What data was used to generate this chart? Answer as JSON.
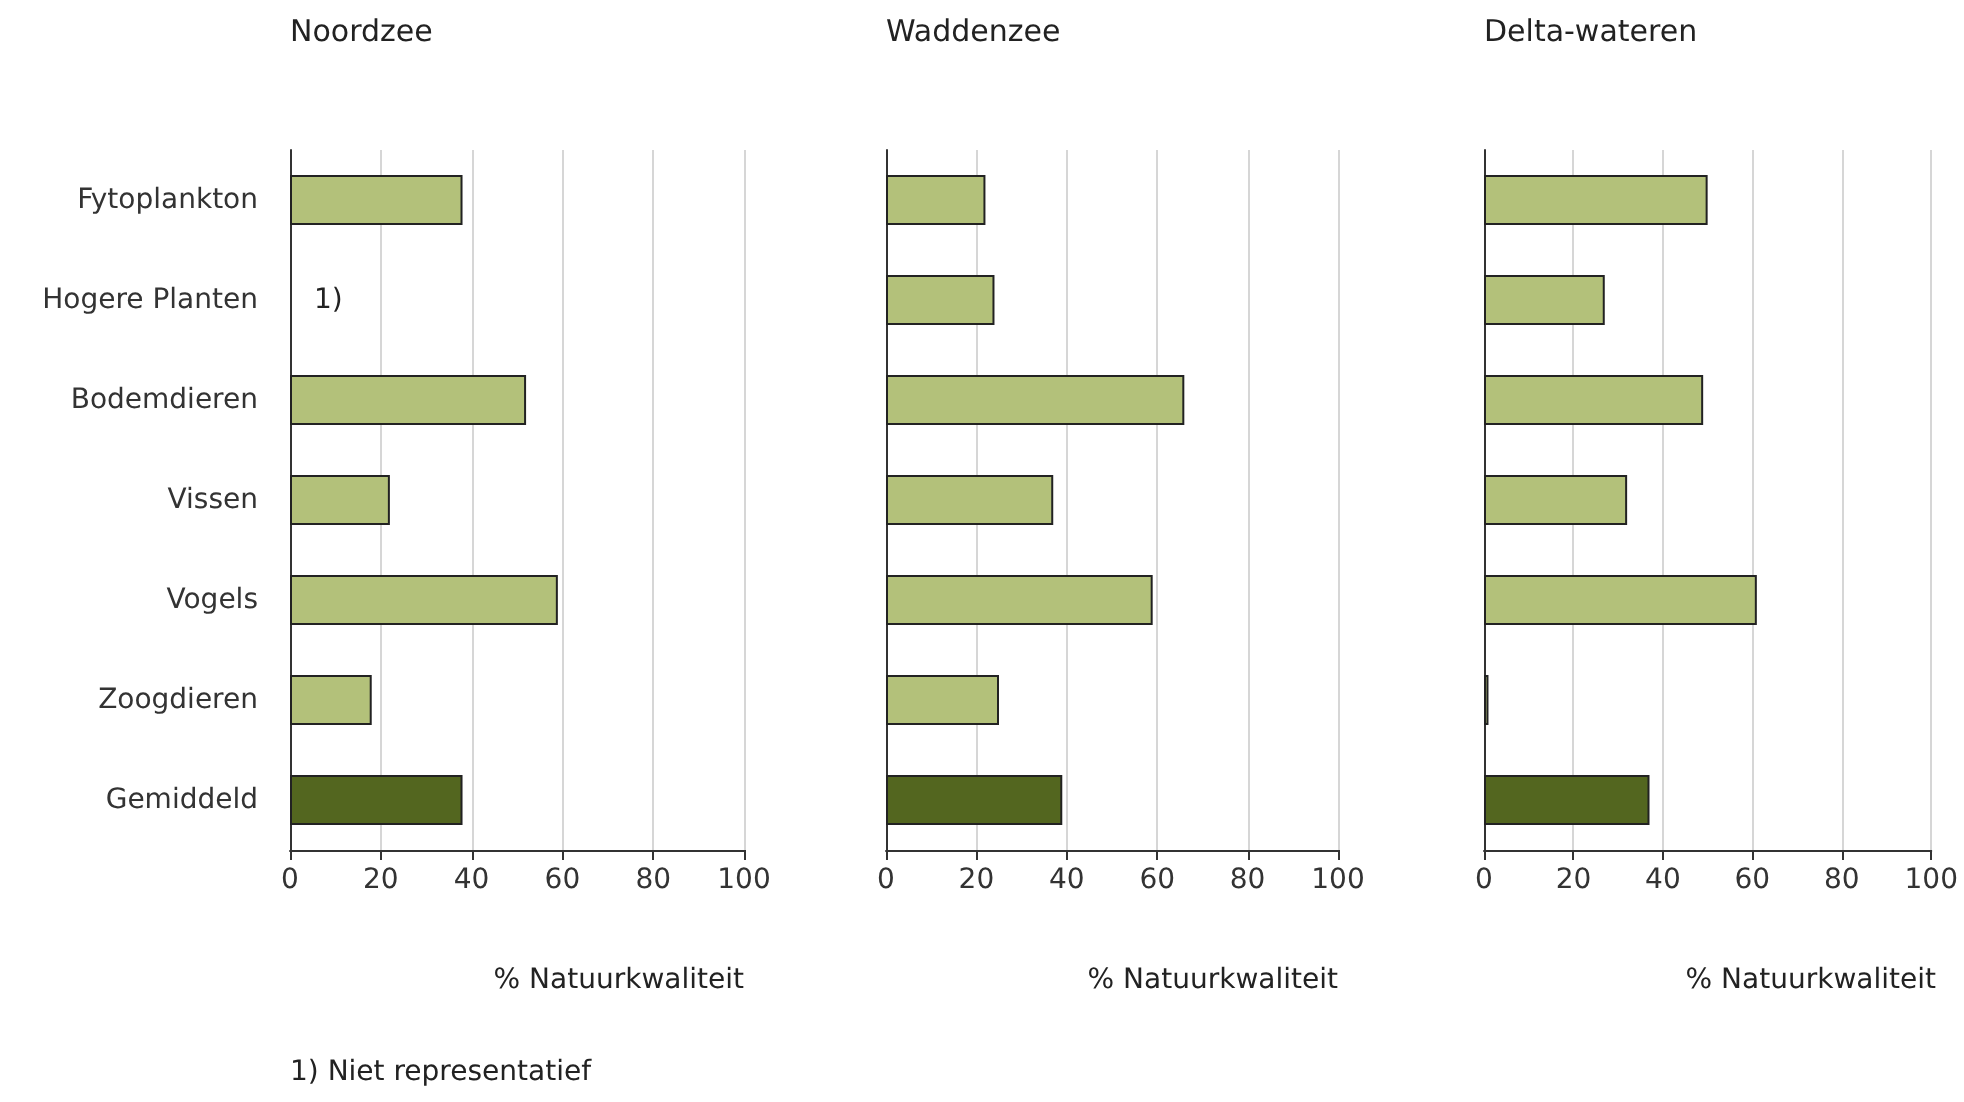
{
  "chart_data": [
    {
      "type": "bar",
      "orientation": "horizontal",
      "title": "Noordzee",
      "xlabel": "% Natuurkwaliteit",
      "categories": [
        "Fytoplankton",
        "Hogere Planten",
        "Bodemdieren",
        "Vissen",
        "Vogels",
        "Zoogdieren",
        "Gemiddeld"
      ],
      "values": [
        38,
        null,
        52,
        22,
        59,
        18,
        38
      ],
      "colors": [
        "#b3c17a",
        "#b3c17a",
        "#b3c17a",
        "#b3c17a",
        "#b3c17a",
        "#b3c17a",
        "#53661f"
      ],
      "xlim": [
        0,
        100
      ],
      "xticks": [
        0,
        20,
        40,
        60,
        80,
        100
      ],
      "grid": "x",
      "value_labels": [
        null,
        "1)",
        null,
        null,
        null,
        null,
        null
      ],
      "annotations": [
        "1) Niet representatief"
      ]
    },
    {
      "type": "bar",
      "orientation": "horizontal",
      "title": "Waddenzee",
      "xlabel": "% Natuurkwaliteit",
      "categories": [
        null,
        null,
        null,
        null,
        null,
        null,
        null
      ],
      "values": [
        22,
        24,
        66,
        37,
        59,
        25,
        39
      ],
      "colors": [
        "#b3c17a",
        "#b3c17a",
        "#b3c17a",
        "#b3c17a",
        "#b3c17a",
        "#b3c17a",
        "#53661f"
      ],
      "xlim": [
        0,
        100
      ],
      "xticks": [
        0,
        20,
        40,
        60,
        80,
        100
      ],
      "grid": "x",
      "tick_labels": "x"
    },
    {
      "type": "bar",
      "orientation": "horizontal",
      "title": "Delta-wateren",
      "xlabel": "% Natuurkwaliteit",
      "categories": [
        null,
        null,
        null,
        null,
        null,
        null,
        null
      ],
      "values": [
        50,
        27,
        49,
        32,
        61,
        1,
        37
      ],
      "colors": [
        "#b3c17a",
        "#b3c17a",
        "#b3c17a",
        "#b3c17a",
        "#b3c17a",
        "#b3c17a",
        "#53661f"
      ],
      "xlim": [
        0,
        100
      ],
      "xticks": [
        0,
        20,
        40,
        60,
        80,
        100
      ],
      "grid": "x",
      "tick_labels": "x"
    }
  ]
}
